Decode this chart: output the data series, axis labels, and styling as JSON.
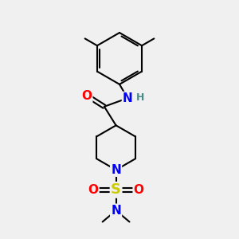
{
  "bg_color": "#f0f0f0",
  "atom_colors": {
    "C": "#000000",
    "N": "#0000ff",
    "O": "#ff0000",
    "S": "#cccc00",
    "H": "#4a8a8a"
  },
  "bond_color": "#000000",
  "bond_width": 1.5,
  "font_size_atoms": 11,
  "font_size_H": 9
}
